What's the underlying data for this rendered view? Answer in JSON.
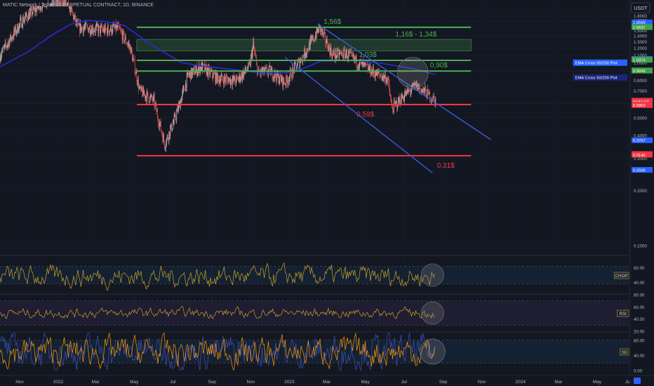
{
  "header": {
    "title": "MATIC Network / TetherUS PERPETUAL CONTRACT, 1D, BINANCE",
    "currency": "USDT"
  },
  "colors": {
    "background": "#131722",
    "support_green": "#4caf50",
    "resistance_red": "#f23645",
    "channel_blue": "#3a5bd9",
    "ema_line": "#2a2ad6",
    "candle_up": "#c9c9c9",
    "candle_down": "#ef5350",
    "indicator_gold": "#c9a227",
    "stoch_blue": "#3f51b5",
    "stoch_orange": "#ff9800"
  },
  "chart_data": {
    "type": "candlestick",
    "y_scale": "log",
    "price_ticks": [
      "1.8000",
      "1.7000",
      "1.6000",
      "1.5000",
      "1.4000",
      "1.3000",
      "1.2000",
      "1.1000",
      "1.0000",
      "0.9000",
      "0.8000",
      "0.7000",
      "0.6000",
      "0.5000",
      "0.4000",
      "0.3000",
      "0.2000",
      "0.1000"
    ],
    "x_ticks": [
      "Nov",
      "2022",
      "Mar",
      "May",
      "Jul",
      "Sep",
      "Nov",
      "2023",
      "Mar",
      "May",
      "Jul",
      "Sep",
      "Nov",
      "2024",
      "Mar",
      "May",
      "Ju"
    ],
    "levels": [
      {
        "label": "1,56$",
        "price": 1.56,
        "color": "green"
      },
      {
        "label": "1,03$",
        "price": 1.03,
        "color": "green"
      },
      {
        "label": "0,90$",
        "price": 0.9,
        "color": "green"
      },
      {
        "label": "0,59$",
        "price": 0.59,
        "color": "red"
      },
      {
        "label": "0,31$",
        "price": 0.31,
        "color": "red"
      }
    ],
    "zone": {
      "label": "1,16$ - 1,34$",
      "low": 1.16,
      "high": 1.34
    },
    "channel_upper": [
      {
        "date": "2023-02-15",
        "price": 1.62
      },
      {
        "date": "2023-11-15",
        "price": 0.38
      }
    ],
    "channel_lower": [
      {
        "date": "2022-12-25",
        "price": 1.07
      },
      {
        "date": "2023-08-15",
        "price": 0.25
      }
    ],
    "price_badges": [
      {
        "text": "1.6599",
        "price": 1.6599,
        "bg": "#2962ff"
      },
      {
        "text": "1.5664",
        "price": 1.5664,
        "bg": "#43a047"
      },
      {
        "text": "1.5637",
        "price": 1.5637,
        "bg": "#43a047"
      },
      {
        "text": "1.0484",
        "price": 1.0484,
        "bg": "#2962ff"
      },
      {
        "text": "1.0381",
        "price": 1.0381,
        "bg": "#43a047"
      },
      {
        "text": "1.0374",
        "price": 1.0374,
        "bg": "#43a047"
      },
      {
        "text": "0.9076",
        "price": 0.9076,
        "bg": "#43a047"
      },
      {
        "text": "0.9049",
        "price": 0.9049,
        "bg": "#43a047"
      },
      {
        "text": "0.6196",
        "price": 0.6196,
        "bg": "#f23645"
      },
      {
        "text": "07:51:07",
        "price": 0.612,
        "bg": "#f23645"
      },
      {
        "text": "0.5890",
        "price": 0.589,
        "bg": "#f23645"
      },
      {
        "text": "0.5863",
        "price": 0.5863,
        "bg": "#f23645"
      },
      {
        "text": "0.3767",
        "price": 0.3767,
        "bg": "#2962ff"
      },
      {
        "text": "0.3168",
        "price": 0.3168,
        "bg": "#f23645"
      },
      {
        "text": "0.3140",
        "price": 0.314,
        "bg": "#f23645"
      },
      {
        "text": "0.2596",
        "price": 0.2596,
        "bg": "#2962ff"
      }
    ],
    "ema_labels": [
      {
        "text": "EMA Cross 50/200 Plot",
        "price": 1.0,
        "bg": "#2962ff"
      },
      {
        "text": "EMA Cross 50/200 Plot",
        "price": 0.83,
        "bg": "#1a237e"
      }
    ],
    "indicators": [
      {
        "name": "CHOP",
        "ticks": [
          "60.00",
          "40.00"
        ],
        "band": [
          61.8,
          38.2
        ],
        "range": [
          25,
          75
        ]
      },
      {
        "name": "RSI",
        "ticks": [
          "80.00",
          "60.00",
          "40.00",
          "20.00"
        ],
        "band": [
          70,
          30
        ],
        "range": [
          20,
          80
        ]
      },
      {
        "name": "SD",
        "ticks": [
          "80.00",
          "40.00",
          "0.00"
        ],
        "band": [
          80,
          20
        ],
        "range": [
          0,
          100
        ]
      }
    ]
  }
}
